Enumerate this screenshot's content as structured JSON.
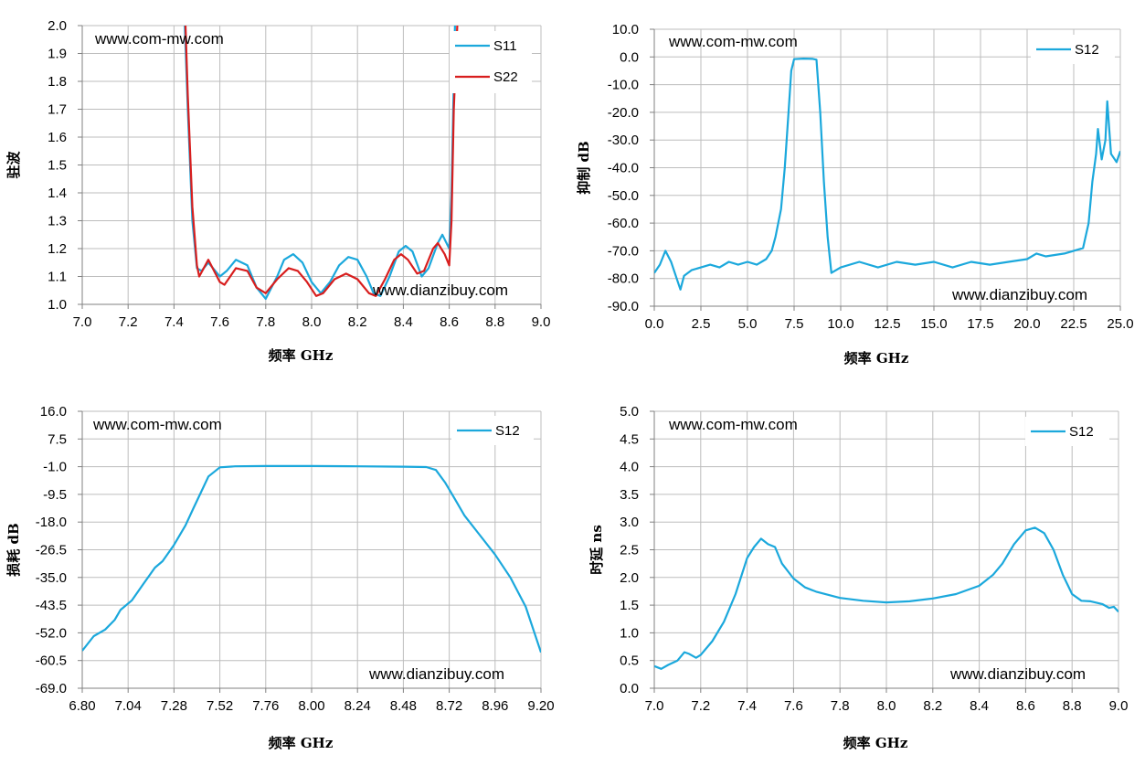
{
  "colors": {
    "s11": "#1ba8dc",
    "s22": "#d81e1e",
    "grid": "#bdbdbd",
    "axis": "#808080"
  },
  "chart_data": [
    {
      "type": "line",
      "xlabel": "频率 GHz",
      "ylabel": "驻波",
      "xlim": [
        7.0,
        9.0
      ],
      "ylim": [
        1.0,
        2.0
      ],
      "x_ticks": [
        "7.0",
        "7.2",
        "7.4",
        "7.6",
        "7.8",
        "8.0",
        "8.2",
        "8.4",
        "8.6",
        "8.8",
        "9.0"
      ],
      "y_ticks": [
        "1.0",
        "1.1",
        "1.2",
        "1.3",
        "1.4",
        "1.5",
        "1.6",
        "1.7",
        "1.8",
        "1.9",
        "2.0"
      ],
      "grid": true,
      "legend_position": "top-right",
      "annotations": [
        "www.com-mw.com",
        "www.dianzibuy.com"
      ],
      "series": [
        {
          "name": "S11",
          "color": "#1ba8dc",
          "points": [
            [
              7.447,
              2.0
            ],
            [
              7.46,
              1.7
            ],
            [
              7.48,
              1.3
            ],
            [
              7.5,
              1.13
            ],
            [
              7.52,
              1.12
            ],
            [
              7.55,
              1.15
            ],
            [
              7.6,
              1.1
            ],
            [
              7.63,
              1.12
            ],
            [
              7.67,
              1.16
            ],
            [
              7.72,
              1.14
            ],
            [
              7.76,
              1.06
            ],
            [
              7.8,
              1.02
            ],
            [
              7.85,
              1.1
            ],
            [
              7.88,
              1.16
            ],
            [
              7.92,
              1.18
            ],
            [
              7.96,
              1.15
            ],
            [
              8.0,
              1.08
            ],
            [
              8.04,
              1.04
            ],
            [
              8.08,
              1.08
            ],
            [
              8.12,
              1.14
            ],
            [
              8.16,
              1.17
            ],
            [
              8.2,
              1.16
            ],
            [
              8.24,
              1.1
            ],
            [
              8.27,
              1.04
            ],
            [
              8.3,
              1.03
            ],
            [
              8.34,
              1.1
            ],
            [
              8.38,
              1.19
            ],
            [
              8.41,
              1.21
            ],
            [
              8.44,
              1.19
            ],
            [
              8.48,
              1.1
            ],
            [
              8.51,
              1.13
            ],
            [
              8.55,
              1.22
            ],
            [
              8.57,
              1.25
            ],
            [
              8.6,
              1.2
            ],
            [
              8.61,
              1.4
            ],
            [
              8.62,
              1.8
            ],
            [
              8.625,
              2.0
            ]
          ]
        },
        {
          "name": "S22",
          "color": "#d81e1e",
          "points": [
            [
              7.45,
              2.0
            ],
            [
              7.46,
              1.75
            ],
            [
              7.48,
              1.35
            ],
            [
              7.5,
              1.14
            ],
            [
              7.51,
              1.1
            ],
            [
              7.55,
              1.16
            ],
            [
              7.6,
              1.08
            ],
            [
              7.62,
              1.07
            ],
            [
              7.67,
              1.13
            ],
            [
              7.72,
              1.12
            ],
            [
              7.76,
              1.06
            ],
            [
              7.8,
              1.04
            ],
            [
              7.85,
              1.09
            ],
            [
              7.9,
              1.13
            ],
            [
              7.94,
              1.12
            ],
            [
              7.98,
              1.08
            ],
            [
              8.02,
              1.03
            ],
            [
              8.05,
              1.04
            ],
            [
              8.1,
              1.09
            ],
            [
              8.15,
              1.11
            ],
            [
              8.2,
              1.09
            ],
            [
              8.25,
              1.04
            ],
            [
              8.28,
              1.03
            ],
            [
              8.32,
              1.09
            ],
            [
              8.36,
              1.16
            ],
            [
              8.39,
              1.18
            ],
            [
              8.42,
              1.16
            ],
            [
              8.46,
              1.11
            ],
            [
              8.49,
              1.12
            ],
            [
              8.53,
              1.2
            ],
            [
              8.55,
              1.22
            ],
            [
              8.58,
              1.18
            ],
            [
              8.6,
              1.14
            ],
            [
              8.61,
              1.3
            ],
            [
              8.62,
              1.7
            ],
            [
              8.635,
              2.0
            ]
          ]
        }
      ]
    },
    {
      "type": "line",
      "xlabel": "频率 GHz",
      "ylabel": "抑制 dB",
      "xlim": [
        0.0,
        25.0
      ],
      "ylim": [
        -90.0,
        10.0
      ],
      "x_ticks": [
        "0.0",
        "2.5",
        "5.0",
        "7.5",
        "10.0",
        "12.5",
        "15.0",
        "17.5",
        "20.0",
        "22.5",
        "25.0"
      ],
      "y_ticks": [
        "-90.0",
        "-80.0",
        "-70.0",
        "-60.0",
        "-50.0",
        "-40.0",
        "-30.0",
        "-20.0",
        "-10.0",
        "0.0",
        "10.0"
      ],
      "grid": true,
      "legend_position": "top-right",
      "annotations": [
        "www.com-mw.com",
        "www.dianzibuy.com"
      ],
      "series": [
        {
          "name": "S12",
          "color": "#1ba8dc",
          "points": [
            [
              0.0,
              -78
            ],
            [
              0.3,
              -75
            ],
            [
              0.6,
              -70
            ],
            [
              0.9,
              -74
            ],
            [
              1.2,
              -80
            ],
            [
              1.4,
              -84
            ],
            [
              1.6,
              -79
            ],
            [
              2.0,
              -77
            ],
            [
              2.5,
              -76
            ],
            [
              3.0,
              -75
            ],
            [
              3.5,
              -76
            ],
            [
              4.0,
              -74
            ],
            [
              4.5,
              -75
            ],
            [
              5.0,
              -74
            ],
            [
              5.5,
              -75
            ],
            [
              6.0,
              -73
            ],
            [
              6.3,
              -70
            ],
            [
              6.5,
              -65
            ],
            [
              6.8,
              -55
            ],
            [
              7.0,
              -40
            ],
            [
              7.2,
              -20
            ],
            [
              7.35,
              -5
            ],
            [
              7.5,
              -0.8
            ],
            [
              8.0,
              -0.6
            ],
            [
              8.5,
              -0.7
            ],
            [
              8.7,
              -1
            ],
            [
              8.9,
              -20
            ],
            [
              9.1,
              -45
            ],
            [
              9.3,
              -65
            ],
            [
              9.5,
              -78
            ],
            [
              10.0,
              -76
            ],
            [
              11.0,
              -74
            ],
            [
              12.0,
              -76
            ],
            [
              13.0,
              -74
            ],
            [
              14.0,
              -75
            ],
            [
              15.0,
              -74
            ],
            [
              16.0,
              -76
            ],
            [
              17.0,
              -74
            ],
            [
              18.0,
              -75
            ],
            [
              19.0,
              -74
            ],
            [
              20.0,
              -73
            ],
            [
              20.5,
              -71
            ],
            [
              21.0,
              -72
            ],
            [
              22.0,
              -71
            ],
            [
              22.5,
              -70
            ],
            [
              23.0,
              -69
            ],
            [
              23.3,
              -60
            ],
            [
              23.5,
              -45
            ],
            [
              23.7,
              -35
            ],
            [
              23.8,
              -26
            ],
            [
              24.0,
              -37
            ],
            [
              24.2,
              -30
            ],
            [
              24.3,
              -16
            ],
            [
              24.5,
              -35
            ],
            [
              24.8,
              -38
            ],
            [
              25.0,
              -34
            ]
          ]
        }
      ]
    },
    {
      "type": "line",
      "xlabel": "频率 GHz",
      "ylabel": "损耗 dB",
      "xlim": [
        6.8,
        9.2
      ],
      "ylim": [
        -69.0,
        16.0
      ],
      "x_ticks": [
        "6.80",
        "7.04",
        "7.28",
        "7.52",
        "7.76",
        "8.00",
        "8.24",
        "8.48",
        "8.72",
        "8.96",
        "9.20"
      ],
      "y_ticks": [
        "-69.0",
        "-60.5",
        "-52.0",
        "-43.5",
        "-35.0",
        "-26.5",
        "-18.0",
        "-9.5",
        "-1.0",
        "7.5",
        "16.0"
      ],
      "grid": true,
      "legend_position": "top-right",
      "annotations": [
        "www.com-mw.com",
        "www.dianzibuy.com"
      ],
      "series": [
        {
          "name": "S12",
          "color": "#1ba8dc",
          "points": [
            [
              6.8,
              -57.5
            ],
            [
              6.86,
              -53
            ],
            [
              6.92,
              -51
            ],
            [
              6.97,
              -48
            ],
            [
              7.0,
              -45
            ],
            [
              7.06,
              -42
            ],
            [
              7.12,
              -37
            ],
            [
              7.18,
              -32
            ],
            [
              7.22,
              -30
            ],
            [
              7.28,
              -25
            ],
            [
              7.34,
              -19
            ],
            [
              7.38,
              -14
            ],
            [
              7.42,
              -9
            ],
            [
              7.46,
              -4
            ],
            [
              7.52,
              -1.2
            ],
            [
              7.6,
              -0.9
            ],
            [
              7.76,
              -0.8
            ],
            [
              8.0,
              -0.8
            ],
            [
              8.24,
              -0.9
            ],
            [
              8.48,
              -1.0
            ],
            [
              8.6,
              -1.1
            ],
            [
              8.65,
              -2
            ],
            [
              8.7,
              -6
            ],
            [
              8.75,
              -11
            ],
            [
              8.8,
              -16
            ],
            [
              8.88,
              -22
            ],
            [
              8.96,
              -28
            ],
            [
              9.04,
              -35
            ],
            [
              9.12,
              -44
            ],
            [
              9.2,
              -58
            ]
          ]
        }
      ]
    },
    {
      "type": "line",
      "xlabel": "频率 GHz",
      "ylabel": "时延 ns",
      "xlim": [
        7.0,
        9.0
      ],
      "ylim": [
        0.0,
        5.0
      ],
      "x_ticks": [
        "7.0",
        "7.2",
        "7.4",
        "7.6",
        "7.8",
        "8.0",
        "8.2",
        "8.4",
        "8.6",
        "8.8",
        "9.0"
      ],
      "y_ticks": [
        "0.0",
        "0.5",
        "1.0",
        "1.5",
        "2.0",
        "2.5",
        "3.0",
        "3.5",
        "4.0",
        "4.5",
        "5.0"
      ],
      "grid": true,
      "legend_position": "top-right",
      "annotations": [
        "www.com-mw.com",
        "www.dianzibuy.com"
      ],
      "series": [
        {
          "name": "S12",
          "color": "#1ba8dc",
          "points": [
            [
              7.0,
              0.4
            ],
            [
              7.03,
              0.35
            ],
            [
              7.06,
              0.42
            ],
            [
              7.1,
              0.5
            ],
            [
              7.13,
              0.65
            ],
            [
              7.15,
              0.62
            ],
            [
              7.18,
              0.55
            ],
            [
              7.2,
              0.6
            ],
            [
              7.25,
              0.85
            ],
            [
              7.3,
              1.2
            ],
            [
              7.35,
              1.7
            ],
            [
              7.4,
              2.35
            ],
            [
              7.43,
              2.55
            ],
            [
              7.46,
              2.7
            ],
            [
              7.49,
              2.6
            ],
            [
              7.52,
              2.55
            ],
            [
              7.55,
              2.25
            ],
            [
              7.6,
              1.98
            ],
            [
              7.65,
              1.82
            ],
            [
              7.7,
              1.74
            ],
            [
              7.8,
              1.63
            ],
            [
              7.9,
              1.58
            ],
            [
              8.0,
              1.55
            ],
            [
              8.1,
              1.57
            ],
            [
              8.2,
              1.62
            ],
            [
              8.3,
              1.7
            ],
            [
              8.4,
              1.85
            ],
            [
              8.46,
              2.05
            ],
            [
              8.5,
              2.25
            ],
            [
              8.55,
              2.6
            ],
            [
              8.6,
              2.85
            ],
            [
              8.64,
              2.9
            ],
            [
              8.68,
              2.8
            ],
            [
              8.72,
              2.5
            ],
            [
              8.76,
              2.05
            ],
            [
              8.8,
              1.7
            ],
            [
              8.84,
              1.58
            ],
            [
              8.88,
              1.57
            ],
            [
              8.93,
              1.52
            ],
            [
              8.96,
              1.45
            ],
            [
              8.98,
              1.47
            ],
            [
              9.0,
              1.38
            ]
          ]
        }
      ]
    }
  ]
}
